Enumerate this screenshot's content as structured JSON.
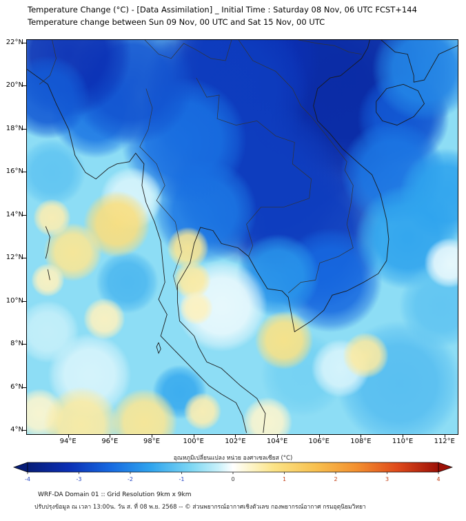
{
  "header": {
    "line1": "Temperature Change (°C) - [Data Assimilation] _ Initial Time : Saturday 08 Nov, 06 UTC FCST+144",
    "line2": "Temperature change between Sun 09 Nov, 00 UTC and Sat 15 Nov, 00 UTC"
  },
  "axes": {
    "xlim": [
      92.0,
      112.6
    ],
    "ylim": [
      3.84,
      22.16
    ],
    "xticks": [
      {
        "value": 94,
        "label": "94°E"
      },
      {
        "value": 96,
        "label": "96°E"
      },
      {
        "value": 98,
        "label": "98°E"
      },
      {
        "value": 100,
        "label": "100°E"
      },
      {
        "value": 102,
        "label": "102°E"
      },
      {
        "value": 104,
        "label": "104°E"
      },
      {
        "value": 106,
        "label": "106°E"
      },
      {
        "value": 108,
        "label": "108°E"
      },
      {
        "value": 110,
        "label": "110°E"
      },
      {
        "value": 112,
        "label": "112°E"
      }
    ],
    "yticks": [
      {
        "value": 22,
        "label": "22°N"
      },
      {
        "value": 20,
        "label": "20°N"
      },
      {
        "value": 18,
        "label": "18°N"
      },
      {
        "value": 16,
        "label": "16°N"
      },
      {
        "value": 14,
        "label": "14°N"
      },
      {
        "value": 12,
        "label": "12°N"
      },
      {
        "value": 10,
        "label": "10°N"
      },
      {
        "value": 8,
        "label": "8°N"
      },
      {
        "value": 6,
        "label": "6°N"
      },
      {
        "value": 4,
        "label": "4°N"
      }
    ]
  },
  "colorbar": {
    "label": "อุณหภูมิเปลี่ยนแปลง หน่วย องศาเซลเซียส (°C)",
    "ticks": [
      -4,
      -3,
      -2,
      -1,
      0,
      1,
      2,
      3,
      4
    ],
    "negative_tick_color": "#1d3fc0",
    "positive_tick_color": "#c03a10",
    "zero_tick_color": "#333333",
    "stops": [
      [
        -4.0,
        "#071d78"
      ],
      [
        -3.2,
        "#0b2fb4"
      ],
      [
        -2.4,
        "#1668e0"
      ],
      [
        -1.6,
        "#2fa4ee"
      ],
      [
        -0.8,
        "#7fd8f4"
      ],
      [
        -0.3,
        "#c6f0fa"
      ],
      [
        0.0,
        "#ffffff"
      ],
      [
        0.3,
        "#fdf6cf"
      ],
      [
        0.8,
        "#fbe386"
      ],
      [
        1.6,
        "#f8c150"
      ],
      [
        2.4,
        "#f3902f"
      ],
      [
        3.2,
        "#df4a1b"
      ],
      [
        4.0,
        "#9c1006"
      ]
    ]
  },
  "footer": {
    "line1": "WRF-DA Domain 01 :: Grid Resolution 9km x 9km",
    "line2": "ปรับปรุงข้อมูล ณ เวลา 13:00น. วัน ส. ที่ 08 พ.ย. 2568 -- © ส่วนพยากรณ์อากาศเชิงตัวเลข กองพยากรณ์อากาศ กรมอุตุนิยมวิทยา"
  },
  "map": {
    "type": "filled-contour temperature change field",
    "base_value": -0.7,
    "blobs": [
      [
        104.5,
        18.5,
        7.0,
        -3.2
      ],
      [
        107.5,
        20.5,
        5.0,
        -3.4
      ],
      [
        102.5,
        21.3,
        3.5,
        -3.2
      ],
      [
        101.5,
        19.8,
        4.0,
        -3.0
      ],
      [
        103.0,
        15.5,
        4.0,
        -3.0
      ],
      [
        105.5,
        13.0,
        3.5,
        -3.0
      ],
      [
        100.5,
        14.2,
        2.5,
        -2.2
      ],
      [
        106.5,
        11.0,
        2.5,
        -2.4
      ],
      [
        99.5,
        17.5,
        3.0,
        -2.3
      ],
      [
        95.3,
        18.8,
        2.2,
        -2.2
      ],
      [
        97.0,
        20.2,
        3.0,
        -2.7
      ],
      [
        94.0,
        21.5,
        3.0,
        -3.2
      ],
      [
        93.0,
        19.5,
        2.0,
        -2.6
      ],
      [
        110.0,
        18.5,
        2.2,
        -2.6
      ],
      [
        109.5,
        16.0,
        2.5,
        -2.2
      ],
      [
        111.0,
        20.8,
        2.5,
        -2.0
      ],
      [
        112.0,
        15.0,
        2.2,
        -1.6
      ],
      [
        110.2,
        13.0,
        2.5,
        -1.6
      ],
      [
        104.0,
        11.2,
        2.0,
        -1.8
      ],
      [
        109.8,
        6.2,
        3.0,
        -1.2
      ],
      [
        111.8,
        9.8,
        2.0,
        -1.1
      ],
      [
        105.2,
        6.6,
        2.0,
        -0.9
      ],
      [
        99.3,
        5.8,
        1.3,
        -1.5
      ],
      [
        96.8,
        10.9,
        1.5,
        -1.3
      ],
      [
        93.2,
        16.0,
        1.6,
        -1.1
      ],
      [
        101.3,
        9.8,
        2.2,
        -0.1
      ],
      [
        97.0,
        14.8,
        1.5,
        -0.2
      ],
      [
        95.0,
        6.6,
        2.0,
        -0.2
      ],
      [
        93.0,
        8.6,
        1.5,
        -0.3
      ],
      [
        112.2,
        11.8,
        1.2,
        -0.1
      ],
      [
        107.0,
        6.9,
        1.4,
        -0.2
      ],
      [
        103.5,
        4.4,
        1.2,
        0.3
      ],
      [
        92.6,
        4.8,
        1.2,
        0.3
      ],
      [
        96.3,
        13.6,
        1.6,
        0.9
      ],
      [
        94.2,
        12.3,
        1.4,
        0.7
      ],
      [
        93.2,
        13.9,
        0.9,
        0.5
      ],
      [
        99.7,
        12.5,
        1.0,
        0.7
      ],
      [
        99.9,
        11.0,
        0.9,
        0.6
      ],
      [
        100.1,
        9.7,
        0.8,
        0.4
      ],
      [
        104.3,
        8.2,
        1.4,
        0.8
      ],
      [
        108.2,
        7.5,
        1.1,
        0.6
      ],
      [
        94.6,
        4.3,
        1.8,
        0.6
      ],
      [
        97.6,
        4.4,
        1.6,
        0.7
      ],
      [
        100.4,
        4.9,
        0.9,
        0.5
      ],
      [
        95.7,
        9.2,
        1.0,
        0.4
      ],
      [
        93.0,
        11.0,
        0.8,
        0.4
      ]
    ],
    "coastlines": [
      [
        [
          92.0,
          20.8
        ],
        [
          93.0,
          20.1
        ],
        [
          93.4,
          19.2
        ],
        [
          94.0,
          18.0
        ],
        [
          94.3,
          16.8
        ],
        [
          94.8,
          16.0
        ],
        [
          95.3,
          15.7
        ],
        [
          95.9,
          16.2
        ],
        [
          96.3,
          16.4
        ],
        [
          96.9,
          16.5
        ],
        [
          97.2,
          16.9
        ],
        [
          97.6,
          16.4
        ],
        [
          97.5,
          15.4
        ],
        [
          97.7,
          14.6
        ],
        [
          98.1,
          13.7
        ],
        [
          98.4,
          12.8
        ],
        [
          98.5,
          11.8
        ],
        [
          98.6,
          10.9
        ],
        [
          98.3,
          10.1
        ],
        [
          98.7,
          9.4
        ],
        [
          98.4,
          8.4
        ],
        [
          99.0,
          7.8
        ],
        [
          99.6,
          7.2
        ],
        [
          100.2,
          6.6
        ],
        [
          100.7,
          6.1
        ],
        [
          101.3,
          5.7
        ],
        [
          102.0,
          5.3
        ],
        [
          102.3,
          4.7
        ],
        [
          102.5,
          3.9
        ]
      ],
      [
        [
          103.3,
          3.9
        ],
        [
          103.4,
          4.8
        ],
        [
          103.0,
          5.5
        ],
        [
          102.2,
          6.1
        ],
        [
          101.3,
          6.9
        ],
        [
          100.6,
          7.2
        ],
        [
          100.2,
          7.9
        ],
        [
          100.0,
          8.4
        ],
        [
          99.3,
          9.1
        ],
        [
          99.2,
          10.0
        ],
        [
          99.2,
          10.8
        ],
        [
          99.8,
          11.8
        ],
        [
          100.0,
          12.7
        ],
        [
          100.3,
          13.45
        ],
        [
          100.9,
          13.3
        ],
        [
          101.3,
          12.7
        ],
        [
          102.1,
          12.5
        ],
        [
          102.6,
          12.1
        ],
        [
          103.0,
          11.4
        ],
        [
          103.5,
          10.6
        ],
        [
          104.2,
          10.5
        ],
        [
          104.5,
          10.2
        ],
        [
          104.8,
          8.6
        ],
        [
          105.6,
          9.1
        ],
        [
          106.2,
          9.6
        ],
        [
          106.6,
          10.3
        ],
        [
          107.3,
          10.5
        ],
        [
          108.1,
          10.9
        ],
        [
          108.8,
          11.3
        ],
        [
          109.2,
          11.9
        ],
        [
          109.3,
          12.9
        ],
        [
          109.2,
          13.8
        ],
        [
          108.9,
          15.0
        ],
        [
          108.5,
          15.9
        ],
        [
          107.9,
          16.4
        ],
        [
          107.1,
          17.1
        ],
        [
          106.5,
          17.8
        ],
        [
          105.9,
          18.4
        ],
        [
          105.7,
          19.1
        ],
        [
          105.9,
          19.9
        ],
        [
          106.5,
          20.4
        ],
        [
          107.0,
          20.5
        ],
        [
          107.5,
          20.9
        ],
        [
          108.0,
          21.3
        ],
        [
          108.3,
          21.8
        ],
        [
          108.4,
          22.2
        ]
      ],
      [
        [
          108.9,
          22.2
        ],
        [
          109.6,
          21.6
        ],
        [
          110.2,
          21.5
        ],
        [
          110.5,
          20.5
        ],
        [
          110.5,
          20.2
        ],
        [
          111.0,
          20.3
        ],
        [
          111.7,
          21.5
        ],
        [
          112.6,
          21.9
        ]
      ],
      [
        [
          108.7,
          19.3
        ],
        [
          109.2,
          19.9
        ],
        [
          110.0,
          20.1
        ],
        [
          110.7,
          19.8
        ],
        [
          111.0,
          19.2
        ],
        [
          110.5,
          18.6
        ],
        [
          109.7,
          18.2
        ],
        [
          109.0,
          18.4
        ],
        [
          108.7,
          18.8
        ],
        [
          108.7,
          19.3
        ]
      ],
      [
        [
          98.3,
          8.1
        ],
        [
          98.4,
          7.8
        ],
        [
          98.3,
          7.6
        ],
        [
          98.2,
          7.9
        ],
        [
          98.3,
          8.1
        ]
      ],
      [
        [
          92.9,
          13.5
        ],
        [
          93.1,
          13.0
        ],
        [
          93.0,
          12.4
        ],
        [
          92.9,
          12.0
        ]
      ],
      [
        [
          93.0,
          11.5
        ],
        [
          93.1,
          11.0
        ]
      ]
    ],
    "borders": [
      [
        [
          97.7,
          19.9
        ],
        [
          98.0,
          19.0
        ],
        [
          97.8,
          18.0
        ],
        [
          97.4,
          17.2
        ],
        [
          98.2,
          16.4
        ],
        [
          98.6,
          15.4
        ],
        [
          98.2,
          14.7
        ],
        [
          99.1,
          13.7
        ],
        [
          99.4,
          12.3
        ],
        [
          99.0,
          11.2
        ],
        [
          99.2,
          10.5
        ]
      ],
      [
        [
          100.1,
          20.4
        ],
        [
          100.6,
          19.5
        ],
        [
          101.2,
          19.6
        ],
        [
          101.1,
          18.5
        ],
        [
          102.0,
          18.2
        ],
        [
          103.0,
          18.4
        ],
        [
          103.9,
          17.7
        ],
        [
          104.8,
          17.4
        ],
        [
          104.7,
          16.4
        ],
        [
          105.6,
          15.7
        ],
        [
          105.5,
          14.8
        ]
      ],
      [
        [
          105.5,
          14.8
        ],
        [
          104.3,
          14.4
        ],
        [
          103.2,
          14.4
        ],
        [
          102.5,
          13.6
        ],
        [
          102.8,
          12.6
        ],
        [
          102.6,
          12.1
        ]
      ],
      [
        [
          102.1,
          22.2
        ],
        [
          102.8,
          21.2
        ],
        [
          103.9,
          20.7
        ],
        [
          104.7,
          19.9
        ],
        [
          105.1,
          19.1
        ],
        [
          105.6,
          18.6
        ],
        [
          106.5,
          17.5
        ],
        [
          107.3,
          16.5
        ],
        [
          107.2,
          16.1
        ],
        [
          107.6,
          15.4
        ],
        [
          107.5,
          14.6
        ],
        [
          107.3,
          13.6
        ],
        [
          107.6,
          12.5
        ],
        [
          106.9,
          12.1
        ],
        [
          106.0,
          11.8
        ],
        [
          105.8,
          11.0
        ],
        [
          105.1,
          10.9
        ],
        [
          104.5,
          10.4
        ]
      ],
      [
        [
          97.6,
          22.2
        ],
        [
          98.3,
          21.5
        ],
        [
          98.9,
          21.3
        ],
        [
          99.5,
          22.0
        ],
        [
          100.1,
          21.7
        ],
        [
          100.8,
          21.3
        ],
        [
          101.5,
          21.2
        ],
        [
          101.8,
          22.2
        ]
      ],
      [
        [
          104.8,
          22.2
        ],
        [
          105.9,
          22.0
        ],
        [
          106.7,
          21.9
        ],
        [
          107.4,
          21.6
        ],
        [
          108.0,
          21.5
        ]
      ],
      [
        [
          93.2,
          22.2
        ],
        [
          93.4,
          21.3
        ],
        [
          93.1,
          20.5
        ],
        [
          92.6,
          20.1
        ]
      ]
    ]
  }
}
